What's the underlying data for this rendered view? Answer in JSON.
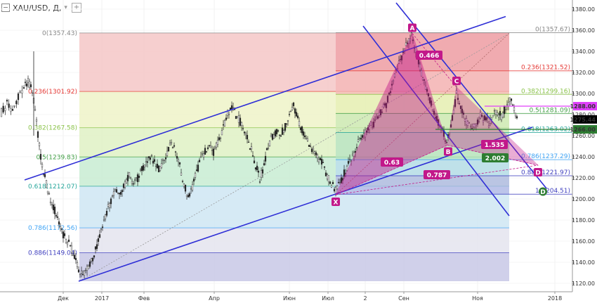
{
  "header": {
    "symbol": "XAU/USD, Д,",
    "chevron": "▾",
    "add_icon": "+"
  },
  "colors": {
    "trend_line": "#2f2fd6",
    "pattern_fill": "#c2188a",
    "point_label_bg": "#c2188a",
    "last_price_bg": "#000000",
    "level_1288_bg": "#e040fb",
    "level_1266_bg": "#2e7d32",
    "point_D_bg": "#2e7d32"
  },
  "chart_data": {
    "type": "candlestick",
    "symbol": "XAU/USD",
    "timeframe": "Д",
    "x_axis_labels": [
      "Дек",
      "2017",
      "Фев",
      "Апр",
      "Июн",
      "Июл",
      "2",
      "Сен",
      "Ноя",
      "2018"
    ],
    "y_axis_ticks": [
      1120,
      1140,
      1160,
      1180,
      1200,
      1220,
      1240,
      1260,
      1280,
      1300,
      1320,
      1340,
      1360,
      1380
    ],
    "ylim": [
      1114,
      1386
    ],
    "fib_left": [
      {
        "ratio": "0",
        "price": 1357.43,
        "label": "0(1357.43)",
        "color": "#888888"
      },
      {
        "ratio": "0.236",
        "price": 1301.92,
        "label": "0.236(1301.92)",
        "color": "#e53935"
      },
      {
        "ratio": "0.382",
        "price": 1267.58,
        "label": "0.382(1267.58)",
        "color": "#8bc34a"
      },
      {
        "ratio": "0.5",
        "price": 1239.83,
        "label": "0.5(1239.83)",
        "color": "#43a047"
      },
      {
        "ratio": "0.618",
        "price": 1212.07,
        "label": "0.618(1212.07)",
        "color": "#26a69a"
      },
      {
        "ratio": "0.786",
        "price": 1172.56,
        "label": "0.786(1172.56)",
        "color": "#42a5f5"
      },
      {
        "ratio": "0.886",
        "price": 1149.04,
        "label": "0.886(1149.04)",
        "color": "#3f3fbf"
      }
    ],
    "fib_right": [
      {
        "ratio": "0",
        "price": 1357.67,
        "label": "0(1357.67)",
        "color": "#888888"
      },
      {
        "ratio": "0.236",
        "price": 1321.52,
        "label": "0.236(1321.52)",
        "color": "#e53935"
      },
      {
        "ratio": "0.382",
        "price": 1299.16,
        "label": "0.382(1299.16)",
        "color": "#8bc34a"
      },
      {
        "ratio": "0.5",
        "price": 1281.09,
        "label": "0.5(1281.09)",
        "color": "#43a047"
      },
      {
        "ratio": "0.618",
        "price": 1263.02,
        "label": "0.618(1263.02)",
        "color": "#26a69a"
      },
      {
        "ratio": "0.786",
        "price": 1237.29,
        "label": "0.786(1237.29)",
        "color": "#42a5f5"
      },
      {
        "ratio": "0.886",
        "price": 1221.97,
        "label": "0.886(1221.97)",
        "color": "#3f3fbf"
      },
      {
        "ratio": "1",
        "price": 1204.51,
        "label": "1(1204.51)",
        "color": "#3f3fbf"
      }
    ],
    "harmonic_points": [
      {
        "label": "X",
        "price": 1204
      },
      {
        "label": "A",
        "price": 1357
      },
      {
        "label": "B",
        "price": 1251
      },
      {
        "label": "C",
        "price": 1306
      },
      {
        "label": "D",
        "price": 1232
      }
    ],
    "harmonic_ratios": [
      "0.466",
      "0.63",
      "0.787",
      "1.535",
      "2.002"
    ],
    "price_labels": [
      {
        "text": "1288.00",
        "price": 1288
      },
      {
        "text": "1275.44",
        "price": 1275.44
      },
      {
        "text": "1266.00",
        "price": 1266
      }
    ],
    "last_price": 1275.44
  }
}
